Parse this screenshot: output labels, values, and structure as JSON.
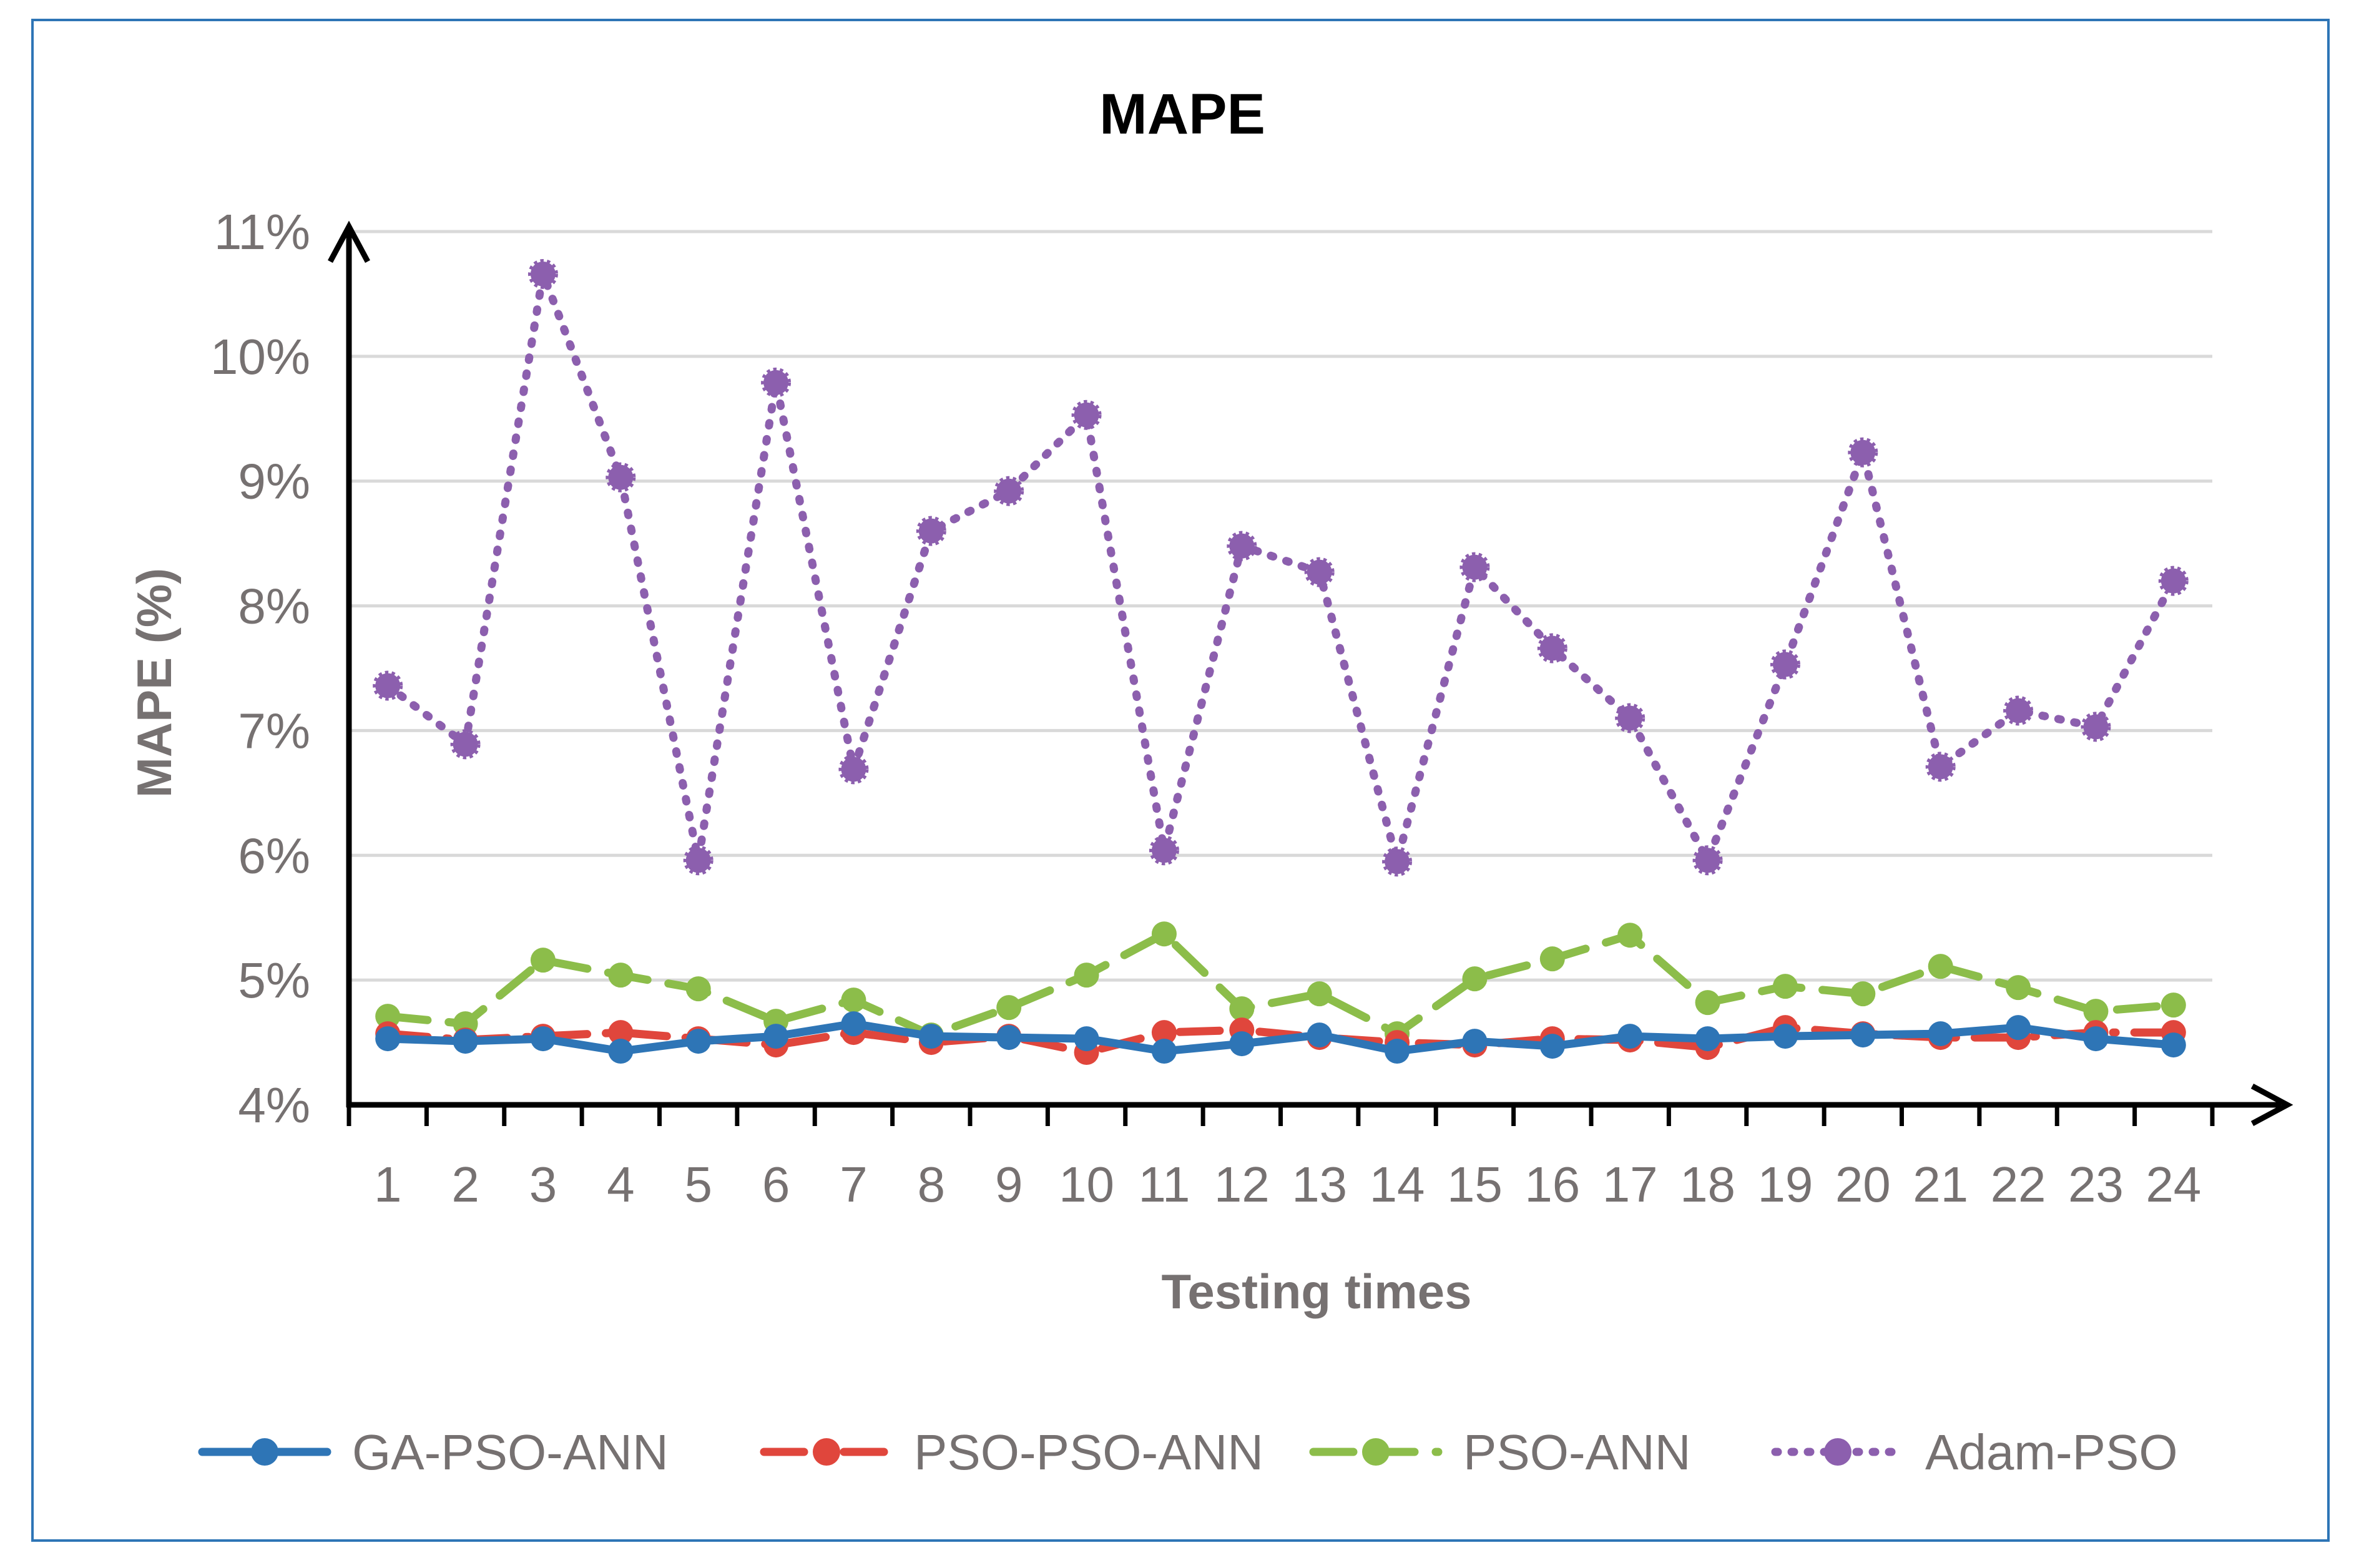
{
  "chart_data": {
    "type": "line",
    "title": "MAPE",
    "xlabel": "Testing times",
    "ylabel": "MAPE (%)",
    "ylim": [
      4,
      11
    ],
    "yticks": [
      "4%",
      "5%",
      "6%",
      "7%",
      "8%",
      "9%",
      "10%",
      "11%"
    ],
    "categories": [
      "1",
      "2",
      "3",
      "4",
      "5",
      "6",
      "7",
      "8",
      "9",
      "10",
      "11",
      "12",
      "13",
      "14",
      "15",
      "16",
      "17",
      "18",
      "19",
      "20",
      "21",
      "22",
      "23",
      "24"
    ],
    "grid": true,
    "legend_position": "bottom",
    "series": [
      {
        "name": "GA-PSO-ANN",
        "color": "#2e75b6",
        "style": "solid",
        "values": [
          4.53,
          4.51,
          4.53,
          4.43,
          4.51,
          4.55,
          4.65,
          4.55,
          4.54,
          4.53,
          4.43,
          4.49,
          4.56,
          4.43,
          4.51,
          4.47,
          4.55,
          4.53,
          4.55,
          4.56,
          4.57,
          4.62,
          4.53,
          4.48
        ]
      },
      {
        "name": "PSO-PSO-ANN",
        "color": "#e0463c",
        "style": "dashdot",
        "values": [
          4.57,
          4.52,
          4.55,
          4.58,
          4.53,
          4.48,
          4.58,
          4.5,
          4.55,
          4.42,
          4.58,
          4.6,
          4.54,
          4.5,
          4.48,
          4.53,
          4.52,
          4.46,
          4.62,
          4.57,
          4.54,
          4.54,
          4.58,
          4.58
        ]
      },
      {
        "name": "PSO-ANN",
        "color": "#8cbd4a",
        "style": "dashed",
        "values": [
          4.71,
          4.65,
          5.16,
          5.04,
          4.93,
          4.67,
          4.84,
          4.56,
          4.78,
          5.04,
          5.37,
          4.77,
          4.89,
          4.57,
          5.01,
          5.17,
          5.36,
          4.82,
          4.95,
          4.89,
          5.11,
          4.94,
          4.75,
          4.8
        ]
      },
      {
        "name": "Adam-PSO",
        "color": "#8c5fae",
        "style": "dotted",
        "values": [
          7.36,
          6.89,
          10.66,
          9.03,
          5.96,
          9.79,
          6.69,
          8.6,
          8.92,
          9.53,
          6.04,
          8.48,
          8.27,
          5.95,
          8.31,
          7.66,
          7.1,
          5.96,
          7.53,
          9.23,
          6.71,
          7.16,
          7.03,
          8.2
        ]
      }
    ]
  }
}
